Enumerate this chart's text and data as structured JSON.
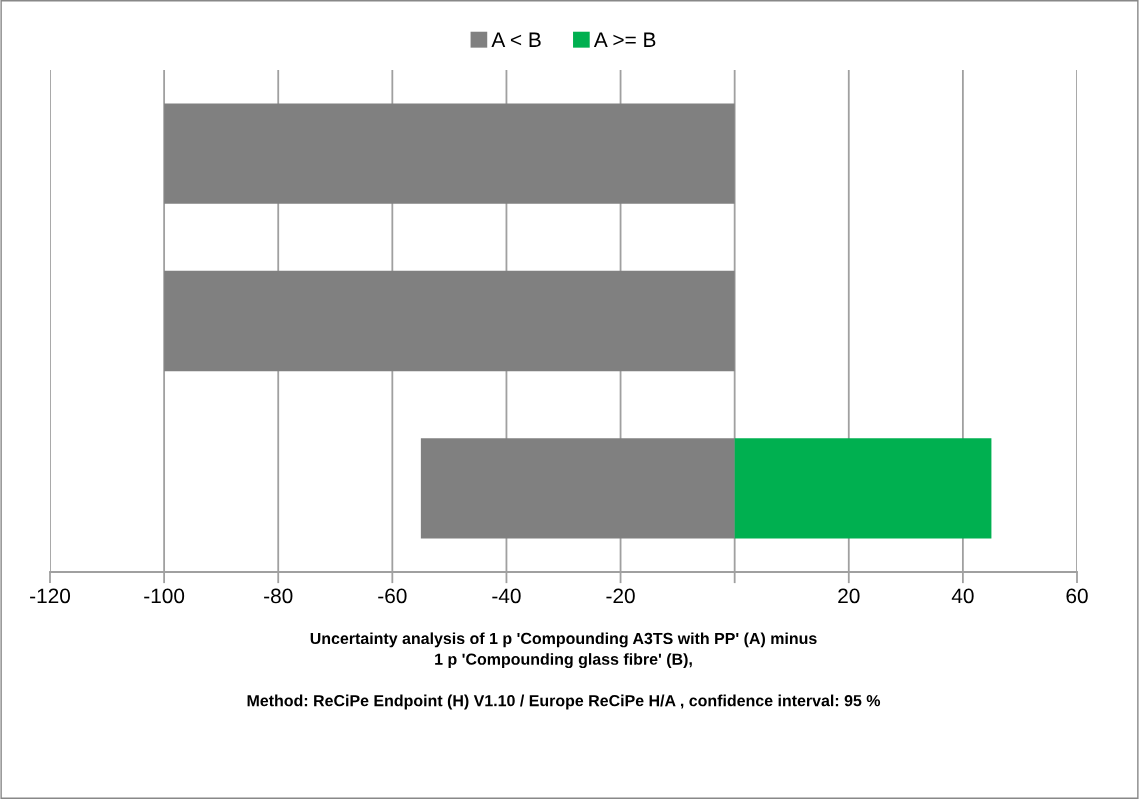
{
  "chart_data": {
    "type": "bar",
    "orientation": "horizontal",
    "stacked": true,
    "categories": [
      null,
      null,
      null
    ],
    "series": [
      {
        "name": "A < B",
        "color": "#808080",
        "values": [
          -100,
          -100,
          -55
        ]
      },
      {
        "name": "A >= B",
        "color": "#00b050",
        "values": [
          0,
          0,
          45
        ]
      }
    ],
    "xlim": [
      -120,
      60
    ],
    "xticks": [
      -120,
      -100,
      -80,
      -60,
      -40,
      -20,
      {
        "value": 0,
        "label": null
      },
      20,
      40,
      60
    ],
    "xlabel": "Uncertainty analysis of 1 p 'Compounding A3TS with PP' (A) minus\n1 p 'Compounding glass fibre' (B),\n\nMethod: ReCiPe Endpoint (H) V1.10 / Europe ReCiPe H/A , confidence interval: 95 %",
    "grid": "x",
    "legend": "top"
  }
}
